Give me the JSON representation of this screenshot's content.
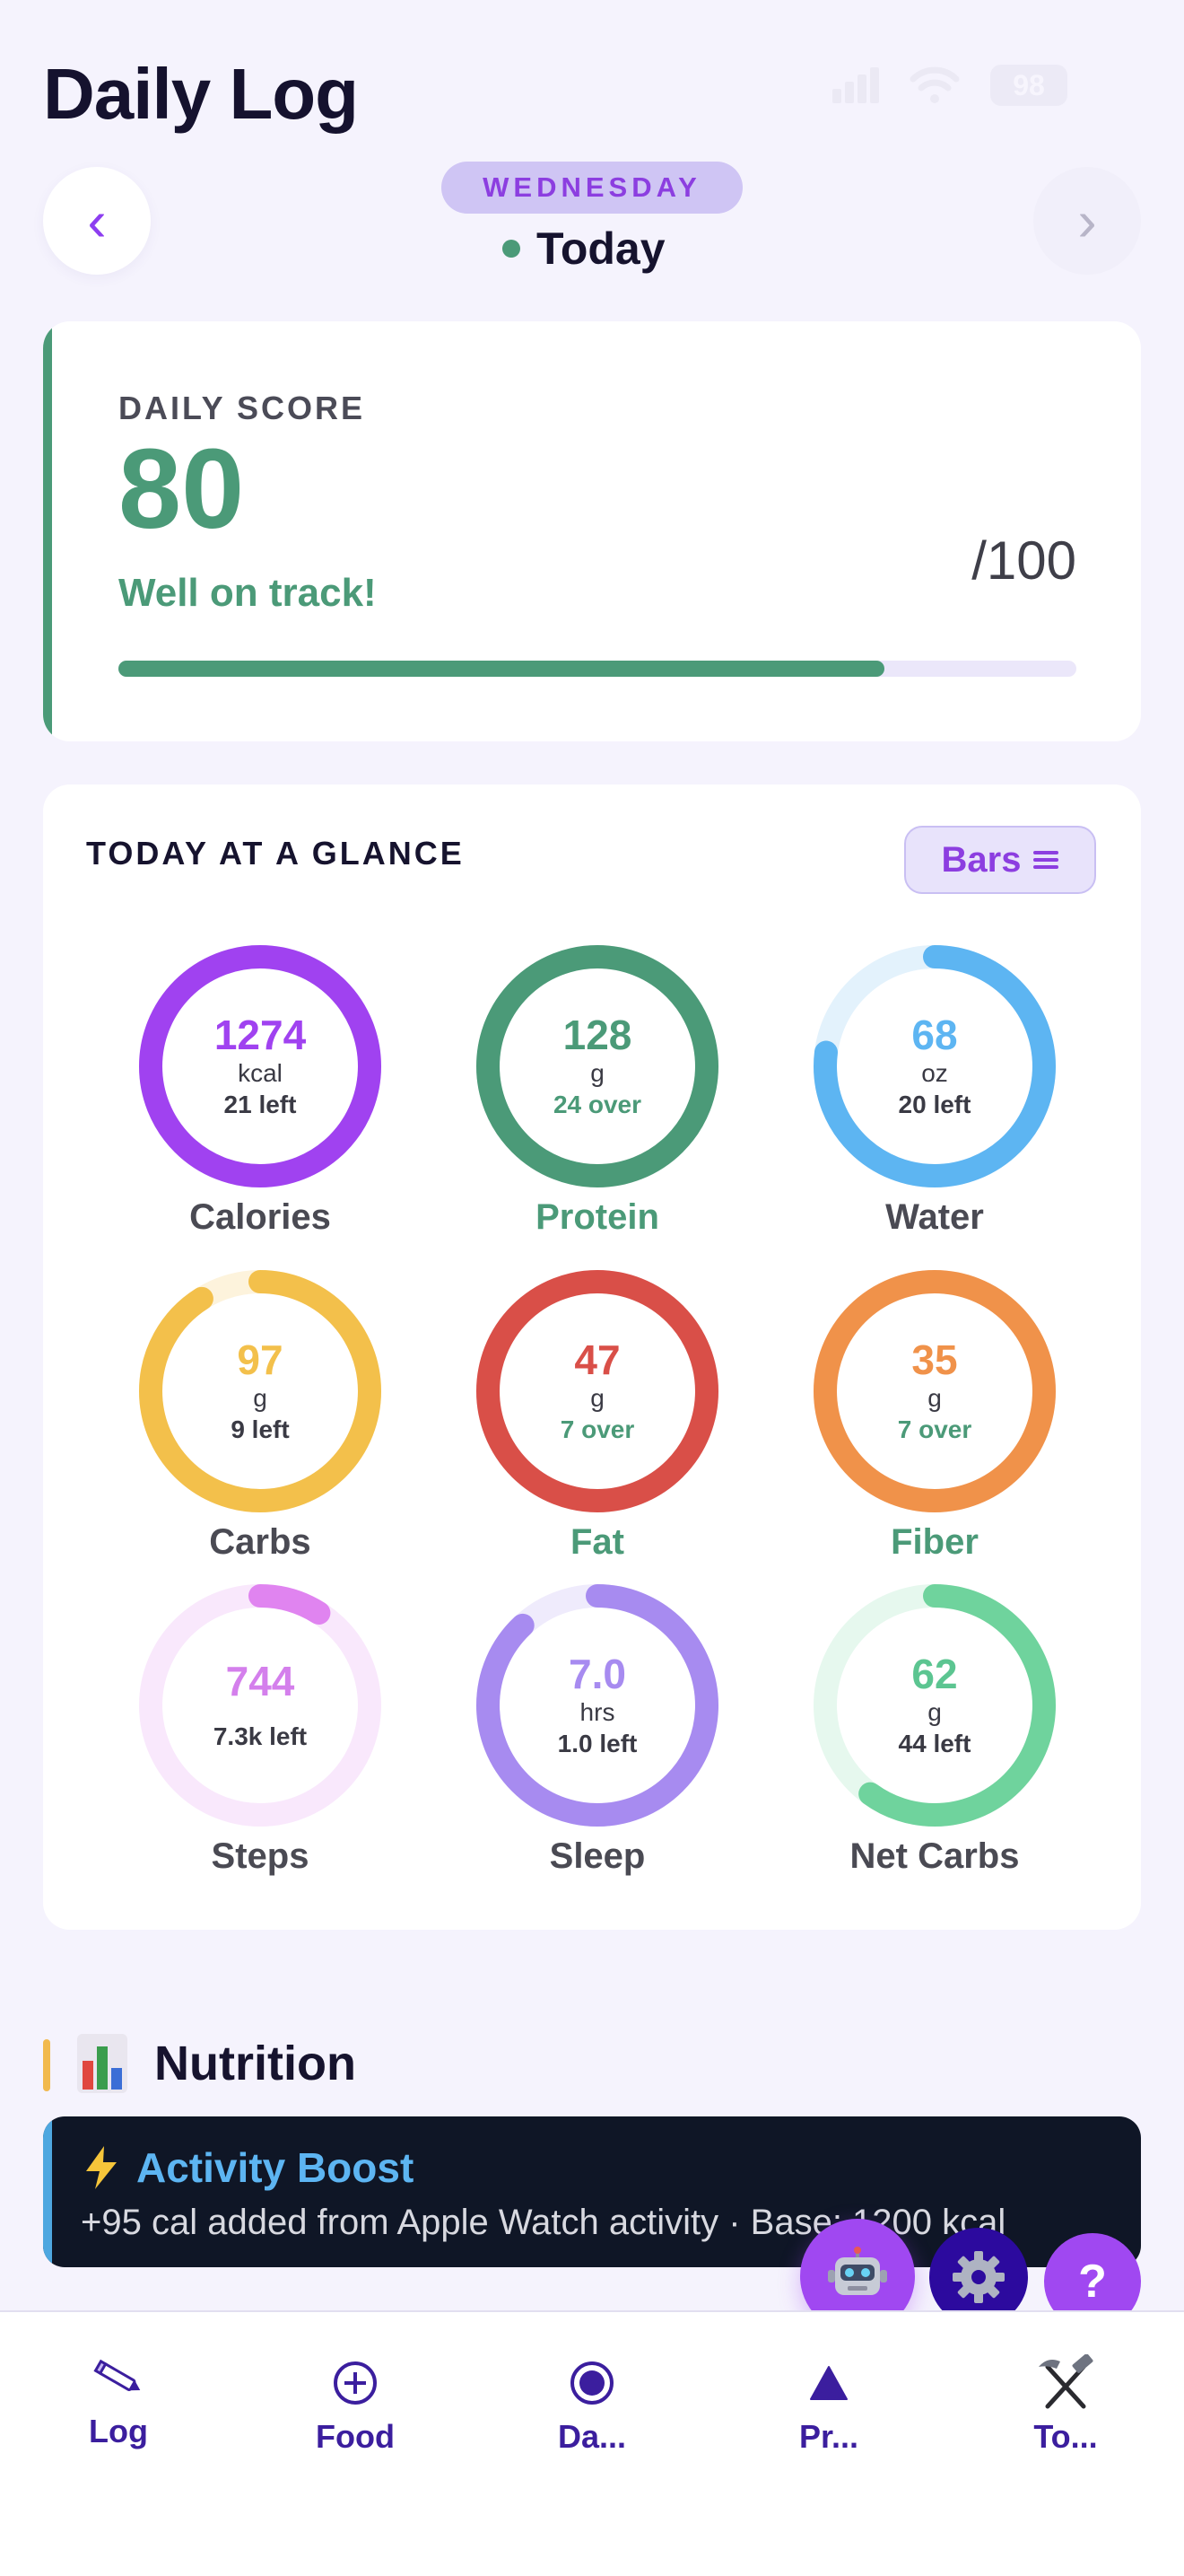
{
  "header": {
    "title": "Daily Log",
    "battery": "98",
    "day_name": "WEDNESDAY",
    "day_label": "Today",
    "prev_symbol": "‹",
    "next_symbol": "›"
  },
  "score": {
    "label": "DAILY SCORE",
    "value": "80",
    "status": "Well on track!",
    "max": "/100",
    "progress": 0.8,
    "color": "#4b9a78"
  },
  "glance": {
    "title": "TODAY AT A GLANCE",
    "toggle_label": "Bars",
    "rings": [
      {
        "key": "calories",
        "value": "1274",
        "unit": "kcal",
        "sub": "21 left",
        "label": "Calories",
        "color": "#a042f0",
        "track": "#efe3fd",
        "fraction": 1.0,
        "value_color": "#a042f0",
        "sub_color": "#3a3a44",
        "label_color": "#4a4a53"
      },
      {
        "key": "protein",
        "value": "128",
        "unit": "g",
        "sub": "24 over",
        "label": "Protein",
        "color": "#4b9a78",
        "track": "#e3f1ea",
        "fraction": 1.0,
        "value_color": "#4b9a78",
        "sub_color": "#4b9a78",
        "label_color": "#4b9a78"
      },
      {
        "key": "water",
        "value": "68",
        "unit": "oz",
        "sub": "20 left",
        "label": "Water",
        "color": "#5db5f2",
        "track": "#e3f2fc",
        "fraction": 0.77,
        "value_color": "#5db5f2",
        "sub_color": "#3a3a44",
        "label_color": "#4a4a53"
      },
      {
        "key": "carbs",
        "value": "97",
        "unit": "g",
        "sub": "9 left",
        "label": "Carbs",
        "color": "#f3c04b",
        "track": "#fdf3dc",
        "fraction": 0.91,
        "value_color": "#f3c04b",
        "sub_color": "#3a3a44",
        "label_color": "#4a4a53"
      },
      {
        "key": "fat",
        "value": "47",
        "unit": "g",
        "sub": "7 over",
        "label": "Fat",
        "color": "#d94f48",
        "track": "#fae4e3",
        "fraction": 1.0,
        "value_color": "#d94f48",
        "sub_color": "#4b9a78",
        "label_color": "#4b9a78"
      },
      {
        "key": "fiber",
        "value": "35",
        "unit": "g",
        "sub": "7 over",
        "label": "Fiber",
        "color": "#f0924a",
        "track": "#fdebdd",
        "fraction": 1.0,
        "value_color": "#f0924a",
        "sub_color": "#4b9a78",
        "label_color": "#4b9a78"
      },
      {
        "key": "steps",
        "value": "744",
        "unit": "",
        "sub": "7.3k left",
        "label": "Steps",
        "color": "#e084f0",
        "track": "#f9e8fc",
        "fraction": 0.09,
        "value_color": "#d47fec",
        "sub_color": "#3a3a44",
        "label_color": "#4a4a53"
      },
      {
        "key": "sleep",
        "value": "7.0",
        "unit": "hrs",
        "sub": "1.0 left",
        "label": "Sleep",
        "color": "#a78bf0",
        "track": "#efebfc",
        "fraction": 0.88,
        "value_color": "#a78bf0",
        "sub_color": "#3a3a44",
        "label_color": "#4a4a53"
      },
      {
        "key": "net-carbs",
        "value": "62",
        "unit": "g",
        "sub": "44 left",
        "label": "Net Carbs",
        "color": "#6fd39d",
        "track": "#e6f8ee",
        "fraction": 0.6,
        "value_color": "#5cc591",
        "sub_color": "#3a3a44",
        "label_color": "#4a4a53"
      }
    ]
  },
  "nutrition": {
    "title": "Nutrition",
    "boost_title": "Activity Boost",
    "boost_text": "+95 cal added from Apple Watch activity · Base: 1200 kcal"
  },
  "fabs": {
    "help": "?"
  },
  "tabs": [
    {
      "key": "log",
      "label": "Log",
      "icon": "pencil-icon"
    },
    {
      "key": "food",
      "label": "Food",
      "icon": "plus-circle-icon"
    },
    {
      "key": "dashboard",
      "label": "Da...",
      "icon": "target-icon"
    },
    {
      "key": "progress",
      "label": "Pr...",
      "icon": "triangle-icon"
    },
    {
      "key": "tools",
      "label": "To...",
      "icon": "hammer-pick-icon"
    }
  ]
}
